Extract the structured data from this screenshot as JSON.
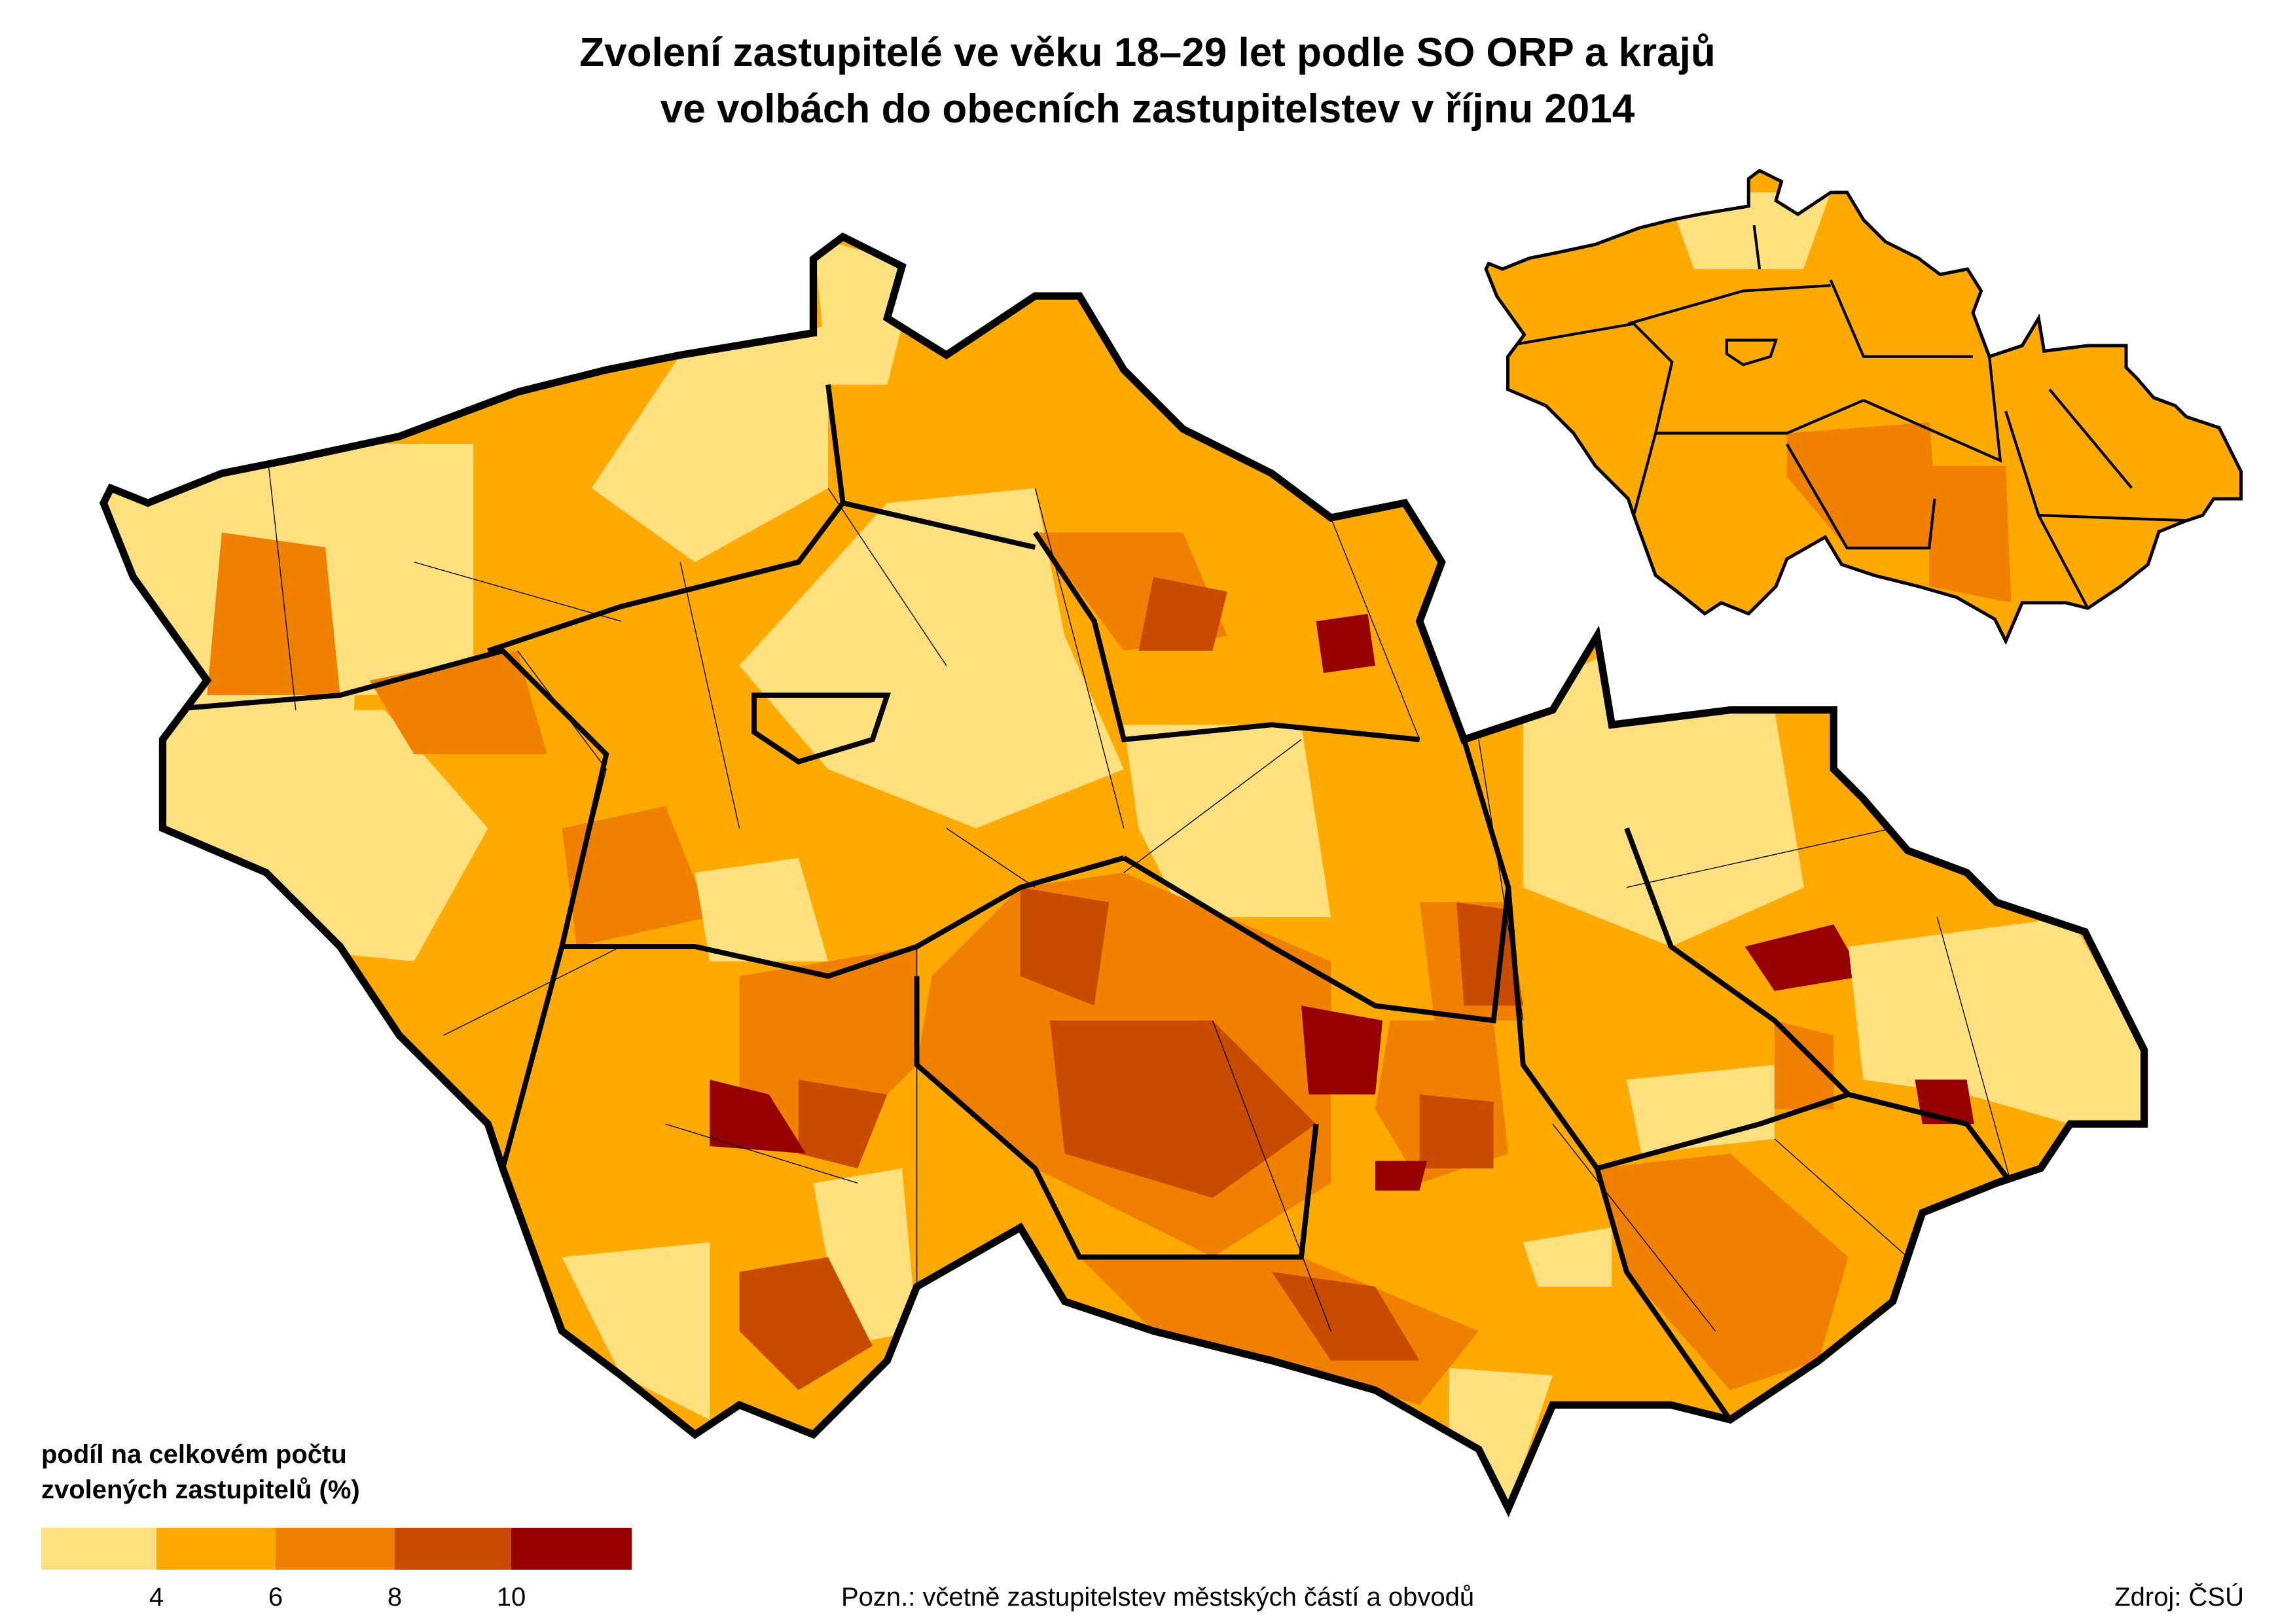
{
  "title": {
    "line1": "Zvolení zastupitelé ve věku 18–29 let podle SO ORP a krajů",
    "line2": "ve volbách do obecních zastupitelstev v říjnu 2014"
  },
  "legend": {
    "title_line1": "podíl na celkovém počtu",
    "title_line2": "zvolených zastupitelů (%)",
    "classes": [
      {
        "range": "< 4",
        "color": "#FFE07F"
      },
      {
        "range": "4–6",
        "color": "#FFAA00"
      },
      {
        "range": "6–8",
        "color": "#F08000"
      },
      {
        "range": "8–10",
        "color": "#C84B00"
      },
      {
        "range": "> 10",
        "color": "#960000"
      }
    ],
    "ticks": [
      "4",
      "6",
      "8",
      "10"
    ]
  },
  "note": "Pozn.:  včetně zastupitelstev městských částí a obvodů",
  "source": "Zdroj: ČSÚ",
  "map": {
    "main": "Czech Republic by SO ORP with kraj boundaries",
    "inset": "Czech Republic by kraj"
  }
}
